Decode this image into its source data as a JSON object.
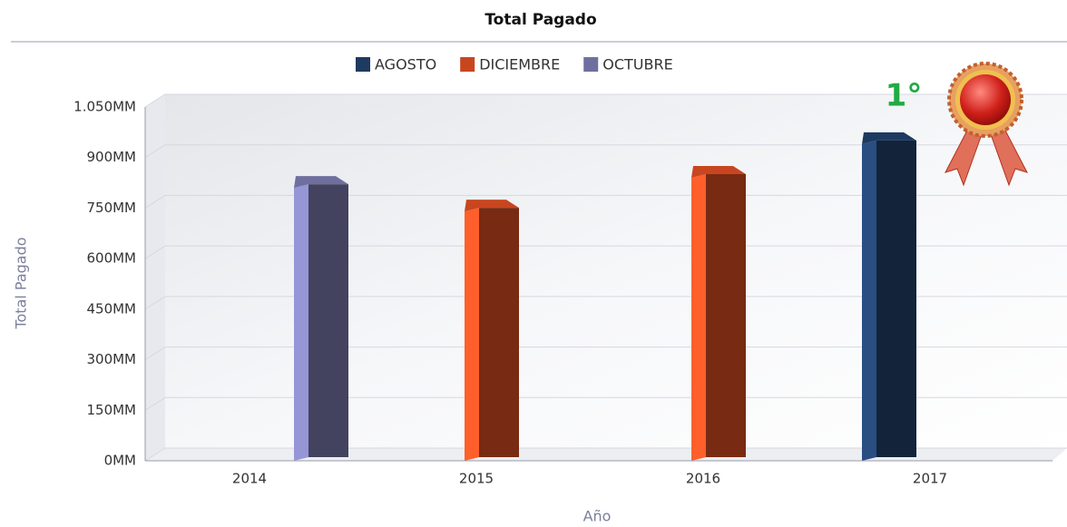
{
  "chart_data": {
    "type": "bar3d",
    "title": "Total Pagado",
    "categories": [
      "2014",
      "2015",
      "2016",
      "2017"
    ],
    "series": [
      {
        "name": "AGOSTO",
        "color": "#1e3a60",
        "values": [
          null,
          null,
          null,
          940
        ]
      },
      {
        "name": "DICIEMBRE",
        "color": "#c8461f",
        "values": [
          null,
          740,
          840,
          null
        ]
      },
      {
        "name": "OCTUBRE",
        "color": "#6f6f9f",
        "values": [
          810,
          null,
          null,
          null
        ]
      }
    ],
    "ylim": [
      0,
      1050
    ],
    "yticks": [
      {
        "value": 0,
        "label": "0MM"
      },
      {
        "value": 150,
        "label": "150MM"
      },
      {
        "value": 300,
        "label": "300MM"
      },
      {
        "value": 450,
        "label": "450MM"
      },
      {
        "value": 600,
        "label": "600MM"
      },
      {
        "value": 750,
        "label": "750MM"
      },
      {
        "value": 900,
        "label": "900MM"
      },
      {
        "value": 1050,
        "label": "1.050MM"
      }
    ],
    "grid": true,
    "y_label": "Total Pagado",
    "x_label": "Año",
    "annotation": "1°"
  }
}
